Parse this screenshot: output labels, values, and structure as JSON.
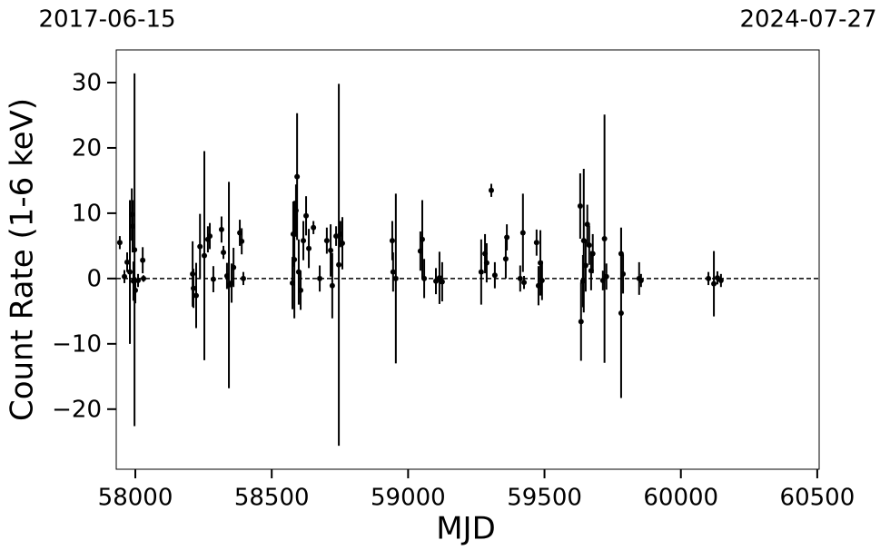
{
  "chart_data": {
    "type": "errorbar",
    "xlabel": "MJD",
    "ylabel": "Count Rate (1-6 keV)",
    "top_left_label": "2017-06-15",
    "top_right_label": "2024-07-27",
    "color": "#000000",
    "hline": 0,
    "xlim": [
      57930,
      60507
    ],
    "ylim": [
      -29.2,
      35
    ],
    "xticks": [
      58000,
      58500,
      59000,
      59500,
      60000,
      60500
    ],
    "yticks": [
      {
        "value": -20,
        "label": "−20"
      },
      {
        "value": -10,
        "label": "−10"
      },
      0,
      10,
      20,
      30
    ],
    "x": [
      57943,
      57960,
      57970,
      57980,
      57987,
      57990,
      57993,
      57997,
      58000,
      58010,
      58027,
      58030,
      58210,
      58213,
      58223,
      58237,
      58253,
      58266,
      58273,
      58286,
      58316,
      58323,
      58336,
      58343,
      58353,
      58360,
      58383,
      58390,
      58396,
      58576,
      58579,
      58583,
      58589,
      58593,
      58599,
      58606,
      58616,
      58626,
      58636,
      58653,
      58676,
      58702,
      58716,
      58722,
      58736,
      58746,
      58752,
      58759,
      58942,
      58945,
      58955,
      59045,
      59052,
      59059,
      59102,
      59115,
      59125,
      59268,
      59282,
      59288,
      59305,
      59318,
      59358,
      59362,
      59411,
      59421,
      59425,
      59471,
      59478,
      59485,
      59491,
      59631,
      59634,
      59641,
      59644,
      59651,
      59657,
      59664,
      59671,
      59677,
      59714,
      59720,
      59727,
      59781,
      59781,
      59788,
      59847,
      59854,
      60101,
      60121,
      60134,
      60147
    ],
    "values": [
      5.5,
      0.3,
      2.5,
      1,
      9.8,
      8,
      -0.4,
      4.4,
      -1.8,
      -0.3,
      2.8,
      0,
      0.7,
      -1.5,
      -2.6,
      4.9,
      3.5,
      6,
      6.5,
      -0.1,
      7.5,
      4,
      0.4,
      -1,
      -0.7,
      1.7,
      7,
      5.7,
      0,
      -0.7,
      6.8,
      2.9,
      10.4,
      15.6,
      1,
      -1.8,
      5.8,
      9.6,
      4.6,
      7.8,
      0,
      5.8,
      4.3,
      -1.1,
      6.5,
      2.1,
      6.8,
      5.4,
      5.8,
      1,
      0,
      4.2,
      6,
      0,
      -0.4,
      0.1,
      -0.5,
      1,
      3.8,
      2.4,
      13.5,
      0.5,
      3,
      6.3,
      0,
      7,
      -0.6,
      5.5,
      -1.1,
      2.4,
      -0.3,
      11.1,
      -6.6,
      -0.4,
      5.8,
      2,
      8.3,
      5.1,
      1.2,
      3.8,
      -0.3,
      6.1,
      0.3,
      3.8,
      -5.3,
      0.7,
      0,
      -0.3,
      0,
      -0.8,
      0.1,
      -0.3
    ],
    "errors": [
      1,
      1,
      1.5,
      11,
      4,
      4,
      3,
      27,
      2,
      1,
      2,
      0.5,
      5,
      3,
      5,
      5,
      16,
      2,
      2,
      2,
      2,
      1,
      2,
      15.8,
      3,
      3,
      2,
      2,
      1,
      4,
      5,
      9,
      4,
      9.7,
      5,
      3,
      3,
      3,
      3,
      1,
      2,
      2,
      4,
      5,
      1.5,
      27.7,
      2,
      4,
      3,
      3,
      13,
      3,
      6,
      3,
      2,
      4,
      3,
      5,
      3,
      3,
      1,
      2,
      3,
      2,
      2,
      6,
      1,
      2,
      3,
      5,
      3,
      5,
      6,
      4,
      11,
      4,
      3,
      3,
      3,
      3,
      1.5,
      19,
      2,
      4,
      13,
      3,
      2.5,
      1,
      1,
      5,
      1,
      1
    ]
  }
}
